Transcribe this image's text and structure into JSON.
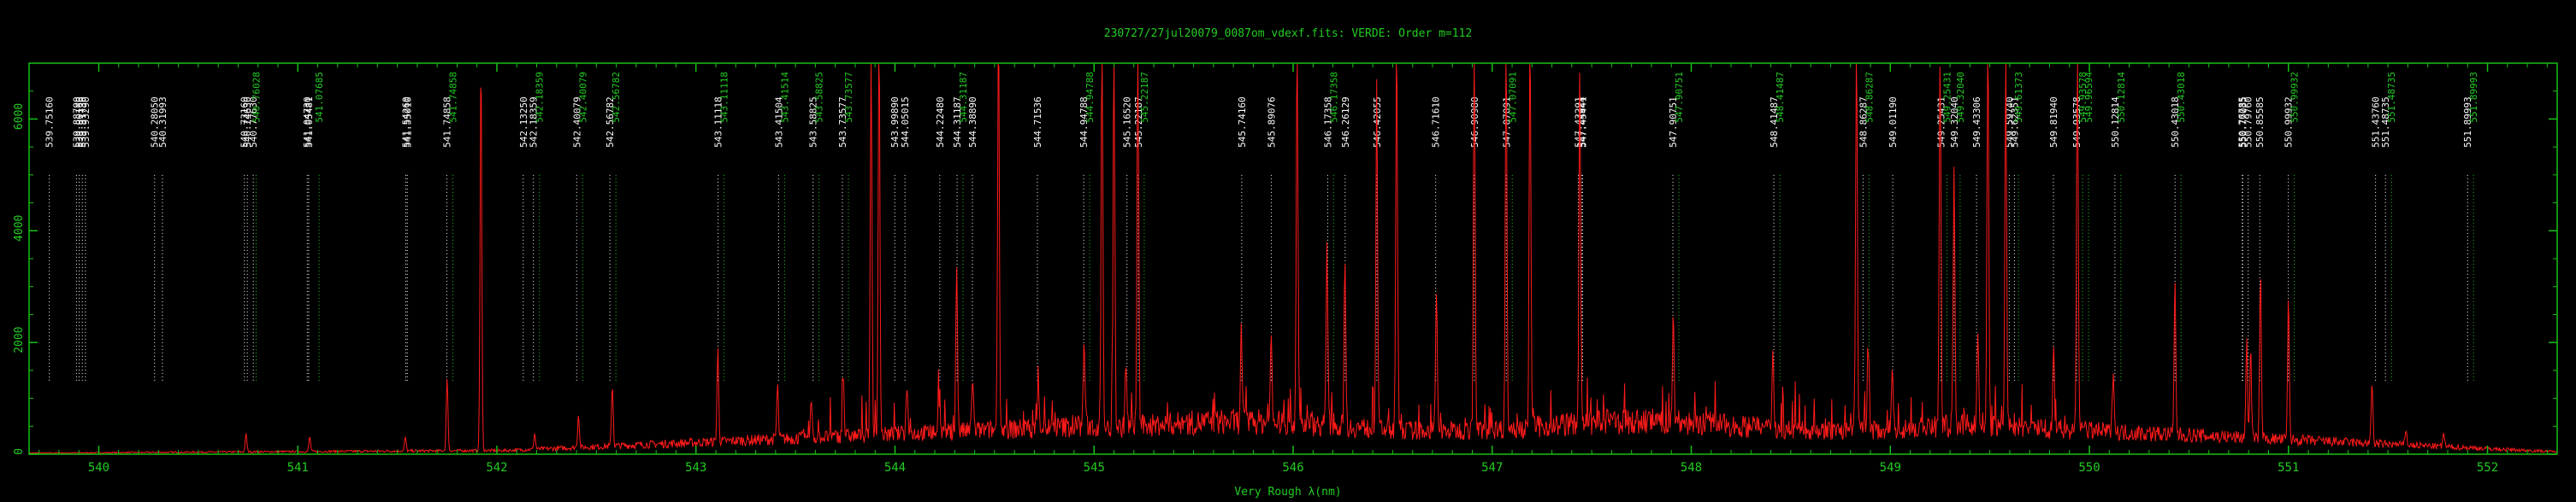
{
  "chart_data": {
    "type": "line",
    "title": "230727/27jul20079_0087om_vdexf.fits: VERDE: Order m=112",
    "xlabel": "Very Rough λ(nm)",
    "ylabel": "",
    "xlim": [
      539.65,
      552.35
    ],
    "ylim": [
      0,
      7000
    ],
    "x_ticks": [
      540,
      541,
      542,
      543,
      544,
      545,
      546,
      547,
      548,
      549,
      550,
      551,
      552
    ],
    "y_ticks": [
      0,
      2000,
      4000,
      6000
    ],
    "colors": {
      "spectrum": "#ff1a1a",
      "axes": "#17c017",
      "text": "#ffffff",
      "green_label": "#22cc22",
      "title": "#22cc22"
    },
    "series": [
      {
        "name": "",
        "peaks": [
          [
            540.74,
            320
          ],
          [
            541.06,
            260
          ],
          [
            541.54,
            250
          ],
          [
            541.75,
            1300
          ],
          [
            541.92,
            7000
          ],
          [
            542.19,
            280
          ],
          [
            542.41,
            600
          ],
          [
            542.58,
            1100
          ],
          [
            543.11,
            1650
          ],
          [
            543.41,
            950
          ],
          [
            543.58,
            700
          ],
          [
            543.74,
            1150
          ],
          [
            543.88,
            7000
          ],
          [
            543.92,
            7000
          ],
          [
            544.06,
            850
          ],
          [
            544.22,
            650
          ],
          [
            544.31,
            3000
          ],
          [
            544.39,
            1000
          ],
          [
            544.52,
            7000
          ],
          [
            544.72,
            900
          ],
          [
            544.95,
            1600
          ],
          [
            545.04,
            7000
          ],
          [
            545.1,
            7000
          ],
          [
            545.16,
            1200
          ],
          [
            545.22,
            7000
          ],
          [
            545.74,
            1650
          ],
          [
            545.89,
            1500
          ],
          [
            546.02,
            7000
          ],
          [
            546.17,
            3200
          ],
          [
            546.26,
            3100
          ],
          [
            546.42,
            6200
          ],
          [
            546.52,
            7000
          ],
          [
            546.72,
            2500
          ],
          [
            546.91,
            7000
          ],
          [
            547.07,
            7000
          ],
          [
            547.19,
            7000
          ],
          [
            547.44,
            6400
          ],
          [
            547.91,
            1850
          ],
          [
            548.41,
            1500
          ],
          [
            548.83,
            7000
          ],
          [
            548.89,
            1500
          ],
          [
            549.01,
            1250
          ],
          [
            549.25,
            6700
          ],
          [
            549.32,
            4500
          ],
          [
            549.44,
            1600
          ],
          [
            549.49,
            7000
          ],
          [
            549.58,
            7000
          ],
          [
            549.82,
            1400
          ],
          [
            549.94,
            7000
          ],
          [
            550.12,
            1200
          ],
          [
            550.43,
            2700
          ],
          [
            550.79,
            1700
          ],
          [
            550.81,
            1600
          ],
          [
            550.86,
            2900
          ],
          [
            551.0,
            2500
          ],
          [
            551.42,
            1100
          ],
          [
            551.59,
            300
          ],
          [
            551.78,
            250
          ]
        ]
      }
    ],
    "line_labels": [
      {
        "x": 539.7516,
        "label": "539.75160",
        "color": "white"
      },
      {
        "x": 539.8879,
        "label": "539.88790",
        "color": "white"
      },
      {
        "x": 539.9016,
        "label": "539.90160",
        "color": "white"
      },
      {
        "x": 539.9173,
        "label": "539.91730",
        "color": "white"
      },
      {
        "x": 539.9329,
        "label": "539.93290",
        "color": "white"
      },
      {
        "x": 540.2805,
        "label": "540.28050",
        "color": "white"
      },
      {
        "x": 540.31993,
        "label": "540.31993",
        "color": "white"
      },
      {
        "x": 540.7316,
        "label": "540.73160",
        "color": "white"
      },
      {
        "x": 540.7463,
        "label": "540.74630",
        "color": "white"
      },
      {
        "x": 540.7763,
        "label": "540.77630",
        "color": "white"
      },
      {
        "x": 540.76028,
        "label": "540.76028",
        "color": "green"
      },
      {
        "x": 541.0473,
        "label": "541.04730",
        "color": "white"
      },
      {
        "x": 541.05481,
        "label": "541.05481",
        "color": "white"
      },
      {
        "x": 541.07685,
        "label": "541.07685",
        "color": "green"
      },
      {
        "x": 541.5426,
        "label": "541.54260",
        "color": "white"
      },
      {
        "x": 541.5501,
        "label": "541.55010",
        "color": "white"
      },
      {
        "x": 541.74858,
        "label": "541.74858",
        "color": "white"
      },
      {
        "x": 541.74858,
        "label": "541.74858",
        "color": "green"
      },
      {
        "x": 542.1325,
        "label": "542.13250",
        "color": "white"
      },
      {
        "x": 542.18359,
        "label": "542.18359",
        "color": "white"
      },
      {
        "x": 542.18359,
        "label": "542.18359",
        "color": "green"
      },
      {
        "x": 542.40079,
        "label": "542.40079",
        "color": "white"
      },
      {
        "x": 542.40079,
        "label": "542.40079",
        "color": "green"
      },
      {
        "x": 542.56782,
        "label": "542.56782",
        "color": "white"
      },
      {
        "x": 542.56782,
        "label": "542.56782",
        "color": "green"
      },
      {
        "x": 543.11118,
        "label": "543.11118",
        "color": "white"
      },
      {
        "x": 543.11118,
        "label": "543.11118",
        "color": "green"
      },
      {
        "x": 543.41504,
        "label": "543.41504",
        "color": "white"
      },
      {
        "x": 543.41514,
        "label": "543.41514",
        "color": "green"
      },
      {
        "x": 543.58825,
        "label": "543.58825",
        "color": "white"
      },
      {
        "x": 543.58825,
        "label": "543.58825",
        "color": "green"
      },
      {
        "x": 543.73577,
        "label": "543.73577",
        "color": "white"
      },
      {
        "x": 543.73577,
        "label": "543.73577",
        "color": "green"
      },
      {
        "x": 543.9989,
        "label": "543.99890",
        "color": "white"
      },
      {
        "x": 544.05015,
        "label": "544.05015",
        "color": "white"
      },
      {
        "x": 544.2248,
        "label": "544.22480",
        "color": "white"
      },
      {
        "x": 544.31187,
        "label": "544.31187",
        "color": "white"
      },
      {
        "x": 544.31187,
        "label": "544.31187",
        "color": "green"
      },
      {
        "x": 544.3889,
        "label": "544.38890",
        "color": "white"
      },
      {
        "x": 544.71536,
        "label": "544.71536",
        "color": "white"
      },
      {
        "x": 544.94788,
        "label": "544.94788",
        "color": "white"
      },
      {
        "x": 544.94788,
        "label": "544.94788",
        "color": "green"
      },
      {
        "x": 545.1652,
        "label": "545.16520",
        "color": "white"
      },
      {
        "x": 545.22187,
        "label": "545.22187",
        "color": "white"
      },
      {
        "x": 545.22187,
        "label": "545.22187",
        "color": "green"
      },
      {
        "x": 545.7416,
        "label": "545.74160",
        "color": "white"
      },
      {
        "x": 545.89076,
        "label": "545.89076",
        "color": "white"
      },
      {
        "x": 546.17358,
        "label": "546.17358",
        "color": "white"
      },
      {
        "x": 546.17358,
        "label": "546.17358",
        "color": "green"
      },
      {
        "x": 546.26129,
        "label": "546.26129",
        "color": "white"
      },
      {
        "x": 546.42055,
        "label": "546.42055",
        "color": "white"
      },
      {
        "x": 546.7161,
        "label": "546.71610",
        "color": "white"
      },
      {
        "x": 546.9098,
        "label": "546.90980",
        "color": "white"
      },
      {
        "x": 547.07091,
        "label": "547.07091",
        "color": "white"
      },
      {
        "x": 547.07091,
        "label": "547.07091",
        "color": "green"
      },
      {
        "x": 547.43291,
        "label": "547.43291",
        "color": "white"
      },
      {
        "x": 547.44944,
        "label": "547.44944",
        "color": "white"
      },
      {
        "x": 547.45441,
        "label": "547.45441",
        "color": "white"
      },
      {
        "x": 547.90751,
        "label": "547.90751",
        "color": "white"
      },
      {
        "x": 547.90751,
        "label": "547.90751",
        "color": "green"
      },
      {
        "x": 548.41487,
        "label": "548.41487",
        "color": "white"
      },
      {
        "x": 548.41487,
        "label": "548.41487",
        "color": "green"
      },
      {
        "x": 548.86287,
        "label": "548.86287",
        "color": "white"
      },
      {
        "x": 548.86287,
        "label": "548.86287",
        "color": "green"
      },
      {
        "x": 549.0119,
        "label": "549.01190",
        "color": "white"
      },
      {
        "x": 549.25431,
        "label": "549.25431",
        "color": "white"
      },
      {
        "x": 549.25431,
        "label": "549.25431",
        "color": "green"
      },
      {
        "x": 549.3204,
        "label": "549.32040",
        "color": "white"
      },
      {
        "x": 549.3204,
        "label": "549.32040",
        "color": "green"
      },
      {
        "x": 549.43306,
        "label": "549.43306",
        "color": "white"
      },
      {
        "x": 549.5974,
        "label": "549.59740",
        "color": "white"
      },
      {
        "x": 549.62351,
        "label": "549.62351",
        "color": "white"
      },
      {
        "x": 549.61373,
        "label": "549.61373",
        "color": "green"
      },
      {
        "x": 549.8194,
        "label": "549.81940",
        "color": "white"
      },
      {
        "x": 549.93578,
        "label": "549.93578",
        "color": "white"
      },
      {
        "x": 549.93578,
        "label": "549.93578",
        "color": "green"
      },
      {
        "x": 549.96594,
        "label": "549.96594",
        "color": "green"
      },
      {
        "x": 550.12814,
        "label": "550.12814",
        "color": "white"
      },
      {
        "x": 550.12814,
        "label": "550.12814",
        "color": "green"
      },
      {
        "x": 550.43018,
        "label": "550.43018",
        "color": "white"
      },
      {
        "x": 550.43018,
        "label": "550.43018",
        "color": "green"
      },
      {
        "x": 550.76785,
        "label": "550.76785",
        "color": "white"
      },
      {
        "x": 550.77035,
        "label": "550.77035",
        "color": "white"
      },
      {
        "x": 550.7976,
        "label": "550.79760",
        "color": "white"
      },
      {
        "x": 550.85585,
        "label": "550.85585",
        "color": "white"
      },
      {
        "x": 550.99932,
        "label": "550.99932",
        "color": "white"
      },
      {
        "x": 550.99932,
        "label": "550.99932",
        "color": "green"
      },
      {
        "x": 551.4376,
        "label": "551.43760",
        "color": "white"
      },
      {
        "x": 551.48735,
        "label": "551.48735",
        "color": "white"
      },
      {
        "x": 551.48735,
        "label": "551.48735",
        "color": "green"
      },
      {
        "x": 551.89993,
        "label": "551.89993",
        "color": "white"
      },
      {
        "x": 551.89993,
        "label": "551.89993",
        "color": "green"
      }
    ],
    "grid": false,
    "legend": "none"
  }
}
